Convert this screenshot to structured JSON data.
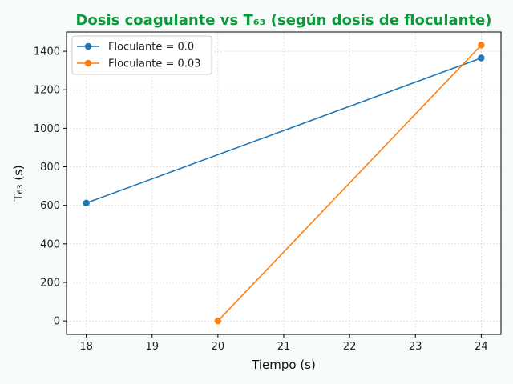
{
  "colors": {
    "title": "#0a9a3a",
    "series1": "#1f77b4",
    "series2": "#ff7f0e"
  },
  "chart_data": {
    "type": "line",
    "title": "Dosis coagulante vs T₆₃ (según dosis de floculante)",
    "xlabel": "Tiempo (s)",
    "ylabel": "T₆₃ (s)",
    "xlim": [
      17.7,
      24.3
    ],
    "ylim": [
      -70,
      1500
    ],
    "xticks": [
      18,
      19,
      20,
      21,
      22,
      23,
      24
    ],
    "yticks": [
      0,
      200,
      400,
      600,
      800,
      1000,
      1200,
      1400
    ],
    "grid": true,
    "legend_position": "top-left",
    "series": [
      {
        "name": "Floculante = 0.0",
        "x": [
          18,
          24
        ],
        "y": [
          612,
          1365
        ]
      },
      {
        "name": "Floculante = 0.03",
        "x": [
          20,
          24
        ],
        "y": [
          0,
          1432
        ]
      }
    ]
  }
}
